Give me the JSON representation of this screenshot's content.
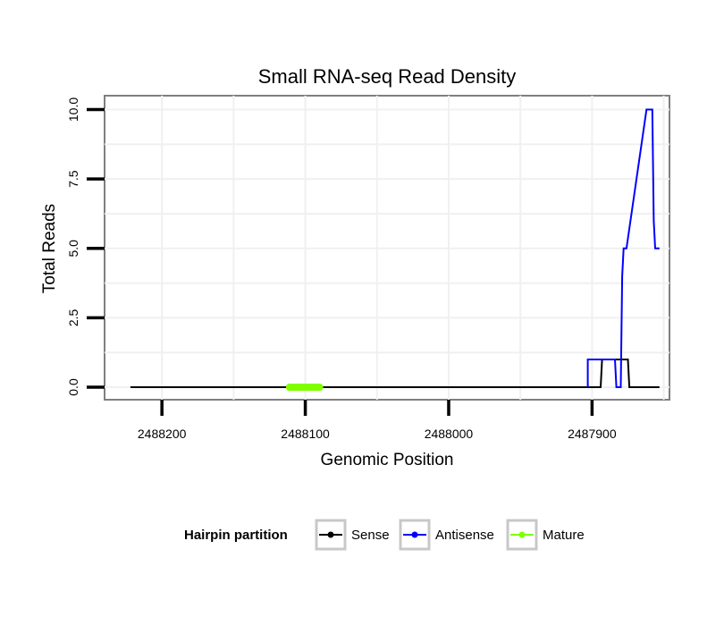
{
  "chart_data": {
    "type": "line",
    "title": "Small RNA-seq Read Density",
    "xlabel": "Genomic Position",
    "ylabel": "Total Reads",
    "x_reversed": true,
    "xlim": [
      2488240,
      2487846
    ],
    "ylim": [
      -0.45,
      10.5
    ],
    "x_ticks": [
      2488200,
      2488100,
      2488000,
      2487900
    ],
    "x_tick_labels": [
      "2488200",
      "2488100",
      "2488000",
      "2487900"
    ],
    "y_ticks": [
      0,
      2.5,
      5,
      7.5,
      10
    ],
    "y_tick_labels": [
      "0.0",
      "2.5",
      "5.0",
      "7.5",
      "10.0"
    ],
    "grid": true,
    "legend": {
      "title": "Hairpin partition",
      "placement": "bottom",
      "entries": [
        "Sense",
        "Antisense",
        "Mature"
      ]
    },
    "series": [
      {
        "name": "Sense",
        "color": "#000000",
        "x": [
          2488222,
          2487894,
          2487893,
          2487884,
          2487883,
          2487875,
          2487874,
          2487853
        ],
        "y": [
          0,
          0,
          1,
          1,
          1,
          1,
          0,
          0
        ]
      },
      {
        "name": "Antisense",
        "color": "#0000ff",
        "x": [
          2487903,
          2487903,
          2487893,
          2487885,
          2487884,
          2487883,
          2487882,
          2487881,
          2487880,
          2487879,
          2487878,
          2487876,
          2487862,
          2487858,
          2487857,
          2487856,
          2487853
        ],
        "y": [
          0,
          1,
          1,
          1,
          1,
          0,
          0,
          0,
          0,
          4,
          5,
          5,
          10,
          10,
          6,
          5,
          5
        ]
      },
      {
        "name": "Mature",
        "color": "#7fff00",
        "x": [
          2488111,
          2488090
        ],
        "y": [
          0,
          0
        ]
      }
    ]
  }
}
